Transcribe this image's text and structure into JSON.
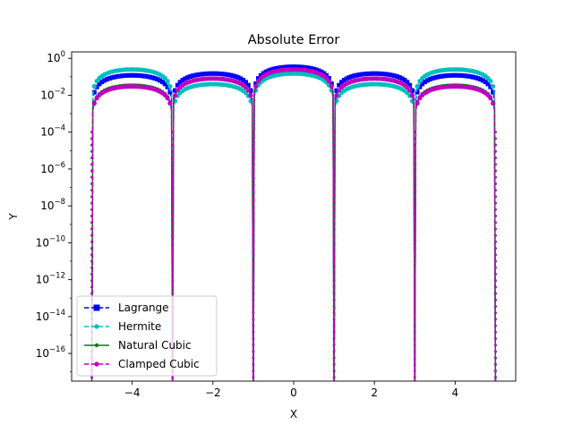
{
  "chart_data": {
    "type": "line",
    "title": "Absolute Error",
    "xlabel": "X",
    "ylabel": "Y",
    "yscale": "log",
    "xlim": [
      -5.5,
      5.5
    ],
    "ylim_exp": [
      -17.5,
      0.35
    ],
    "x_ticks": [
      {
        "value": -4,
        "label": "−4"
      },
      {
        "value": -2,
        "label": "−2"
      },
      {
        "value": 0,
        "label": "0"
      },
      {
        "value": 2,
        "label": "2"
      },
      {
        "value": 4,
        "label": "4"
      }
    ],
    "y_ticks": [
      {
        "exp": 0,
        "base": "10",
        "sup": "0"
      },
      {
        "exp": -2,
        "base": "10",
        "sup": "−2"
      },
      {
        "exp": -4,
        "base": "10",
        "sup": "−4"
      },
      {
        "exp": -6,
        "base": "10",
        "sup": "−6"
      },
      {
        "exp": -8,
        "base": "10",
        "sup": "−8"
      },
      {
        "exp": -10,
        "base": "10",
        "sup": "−10"
      },
      {
        "exp": -12,
        "base": "10",
        "sup": "−12"
      },
      {
        "exp": -14,
        "base": "10",
        "sup": "−14"
      },
      {
        "exp": -16,
        "base": "10",
        "sup": "−16"
      }
    ],
    "nodes": [
      -5,
      -3,
      -1,
      1,
      3,
      5
    ],
    "legend_position": "lower-left",
    "series": [
      {
        "name": "Lagrange",
        "color": "#0000ff",
        "marker": "square",
        "dash": true,
        "arch_peaks": [
          0.12,
          0.15,
          0.35,
          0.15,
          0.12
        ]
      },
      {
        "name": "Hermite",
        "color": "#00bfbf",
        "marker": "circle",
        "dash": true,
        "arch_peaks": [
          0.25,
          0.04,
          0.15,
          0.04,
          0.25
        ]
      },
      {
        "name": "Natural Cubic",
        "color": "#008000",
        "marker": "dot",
        "dash": false,
        "arch_peaks": [
          0.035,
          0.08,
          0.25,
          0.08,
          0.035
        ]
      },
      {
        "name": "Clamped Cubic",
        "color": "#bf00bf",
        "marker": "circle",
        "dash": true,
        "arch_peaks": [
          0.03,
          0.08,
          0.25,
          0.08,
          0.03
        ]
      }
    ]
  }
}
